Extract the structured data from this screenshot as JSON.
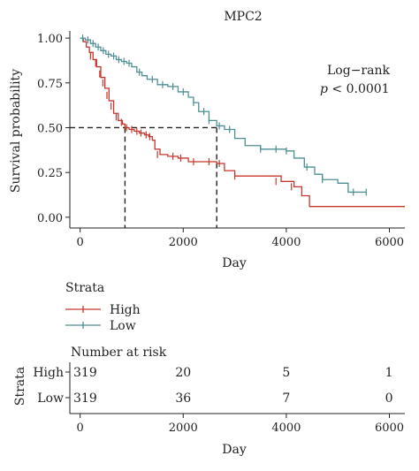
{
  "chart_data": {
    "type": "line",
    "title": "MPC2",
    "xlabel": "Day",
    "ylabel": "Survival probability",
    "xlim": [
      -200,
      6300
    ],
    "ylim": [
      -0.06,
      1.04
    ],
    "xticks": [
      0,
      2000,
      4000,
      6000
    ],
    "yticks": [
      0.0,
      0.25,
      0.5,
      0.75,
      1.0
    ],
    "ytick_labels": [
      "0.00",
      "0.25",
      "0.50",
      "0.75",
      "1.00"
    ],
    "grid": false,
    "annotation": {
      "line1": "Log−rank",
      "line2_p": "p",
      "line2_rest": " < 0.0001"
    },
    "median_reference": {
      "y": 0.5,
      "x_high": 870,
      "x_low": 2650
    },
    "series": [
      {
        "name": "High",
        "color": "#c8372d",
        "x": [
          0,
          60,
          120,
          180,
          250,
          320,
          400,
          480,
          560,
          650,
          740,
          820,
          870,
          950,
          1050,
          1150,
          1250,
          1330,
          1400,
          1450,
          1550,
          1700,
          1900,
          2100,
          2300,
          2650,
          2800,
          3000,
          3600,
          3900,
          4150,
          4300,
          4450,
          6300
        ],
        "y": [
          1.0,
          0.98,
          0.95,
          0.92,
          0.88,
          0.84,
          0.78,
          0.72,
          0.65,
          0.58,
          0.54,
          0.52,
          0.5,
          0.49,
          0.48,
          0.47,
          0.46,
          0.45,
          0.43,
          0.38,
          0.35,
          0.34,
          0.33,
          0.31,
          0.31,
          0.3,
          0.26,
          0.23,
          0.23,
          0.2,
          0.17,
          0.12,
          0.06,
          0.06
        ],
        "censor_x": [
          200,
          300,
          380,
          440,
          520,
          600,
          700,
          800,
          900,
          1000,
          1100,
          1180,
          1280,
          1350,
          1500,
          1800,
          1950,
          2200,
          2500,
          2700,
          3000,
          3800,
          4100
        ],
        "censor_y": [
          0.9,
          0.86,
          0.8,
          0.75,
          0.68,
          0.62,
          0.56,
          0.53,
          0.5,
          0.49,
          0.48,
          0.47,
          0.46,
          0.45,
          0.35,
          0.34,
          0.33,
          0.31,
          0.31,
          0.3,
          0.23,
          0.2,
          0.17
        ]
      },
      {
        "name": "Low",
        "color": "#4e8f93",
        "x": [
          0,
          100,
          200,
          300,
          400,
          500,
          600,
          700,
          800,
          900,
          1000,
          1100,
          1200,
          1300,
          1500,
          1700,
          1900,
          2100,
          2200,
          2300,
          2500,
          2650,
          2800,
          3000,
          3200,
          3500,
          3800,
          4000,
          4150,
          4350,
          4550,
          4700,
          5000,
          5200,
          5550
        ],
        "y": [
          1.0,
          0.99,
          0.97,
          0.95,
          0.93,
          0.91,
          0.9,
          0.88,
          0.87,
          0.86,
          0.84,
          0.81,
          0.79,
          0.77,
          0.74,
          0.73,
          0.7,
          0.67,
          0.64,
          0.59,
          0.54,
          0.51,
          0.49,
          0.44,
          0.4,
          0.38,
          0.38,
          0.37,
          0.33,
          0.28,
          0.24,
          0.21,
          0.19,
          0.14,
          0.14
        ],
        "censor_x": [
          50,
          150,
          250,
          350,
          450,
          550,
          650,
          750,
          850,
          950,
          1150,
          1400,
          1600,
          1800,
          2000,
          2200,
          2400,
          2500,
          2700,
          2900,
          3500,
          3800,
          4000,
          4400,
          4700,
          5300,
          5550
        ],
        "censor_y": [
          1.0,
          0.99,
          0.97,
          0.95,
          0.93,
          0.91,
          0.9,
          0.88,
          0.87,
          0.86,
          0.81,
          0.77,
          0.74,
          0.73,
          0.7,
          0.64,
          0.59,
          0.54,
          0.51,
          0.49,
          0.38,
          0.38,
          0.37,
          0.28,
          0.21,
          0.14,
          0.14
        ]
      }
    ]
  },
  "legend": {
    "title": "Strata",
    "items": [
      {
        "label": "High"
      },
      {
        "label": "Low"
      }
    ]
  },
  "risk_table": {
    "title": "Number at risk",
    "strata_label": "Strata",
    "xlabel": "Day",
    "xticks": [
      0,
      2000,
      4000,
      6000
    ],
    "rows": [
      {
        "label": "High",
        "color": "#c8372d",
        "values": [
          319,
          20,
          5,
          1
        ]
      },
      {
        "label": "Low",
        "color": "#4e8f93",
        "values": [
          319,
          36,
          7,
          0
        ]
      }
    ]
  }
}
